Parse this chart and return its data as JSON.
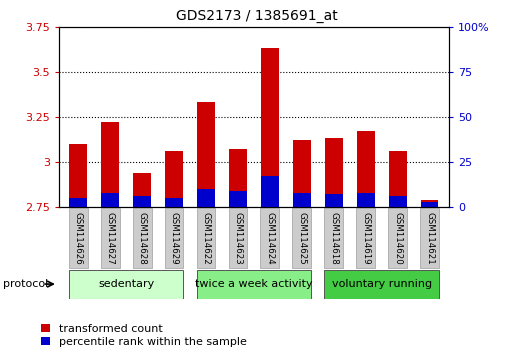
{
  "title": "GDS2173 / 1385691_at",
  "samples": [
    "GSM114626",
    "GSM114627",
    "GSM114628",
    "GSM114629",
    "GSM114622",
    "GSM114623",
    "GSM114624",
    "GSM114625",
    "GSM114618",
    "GSM114619",
    "GSM114620",
    "GSM114621"
  ],
  "transformed_count": [
    3.1,
    3.22,
    2.94,
    3.06,
    3.33,
    3.07,
    3.63,
    3.12,
    3.13,
    3.17,
    3.06,
    2.79
  ],
  "percentile_rank": [
    5,
    8,
    6,
    5,
    10,
    9,
    17,
    8,
    7,
    8,
    6,
    3
  ],
  "baseline": 2.75,
  "ylim_left": [
    2.75,
    3.75
  ],
  "ylim_right": [
    0,
    100
  ],
  "yticks_left": [
    2.75,
    3.0,
    3.25,
    3.5,
    3.75
  ],
  "yticks_right": [
    0,
    25,
    50,
    75,
    100
  ],
  "ytick_labels_left": [
    "2.75",
    "3",
    "3.25",
    "3.5",
    "3.75"
  ],
  "ytick_labels_right": [
    "0",
    "25",
    "50",
    "75",
    "100%"
  ],
  "groups": [
    {
      "label": "sedentary",
      "indices": [
        0,
        1,
        2,
        3
      ],
      "color": "#ccffcc"
    },
    {
      "label": "twice a week activity",
      "indices": [
        4,
        5,
        6,
        7
      ],
      "color": "#88ee88"
    },
    {
      "label": "voluntary running",
      "indices": [
        8,
        9,
        10,
        11
      ],
      "color": "#44cc44"
    }
  ],
  "bar_color_red": "#cc0000",
  "bar_color_blue": "#0000cc",
  "bar_width": 0.55,
  "bg_color": "#ffffff",
  "plot_bg_color": "#ffffff",
  "protocol_label": "protocol",
  "legend_red": "transformed count",
  "legend_blue": "percentile rank within the sample",
  "tick_color_left": "#cc0000",
  "tick_color_right": "#0000cc",
  "sample_box_color": "#cccccc",
  "sample_box_edge": "#aaaaaa",
  "grid_linestyle": "dotted",
  "grid_color": "#000000",
  "grid_linewidth": 0.8
}
